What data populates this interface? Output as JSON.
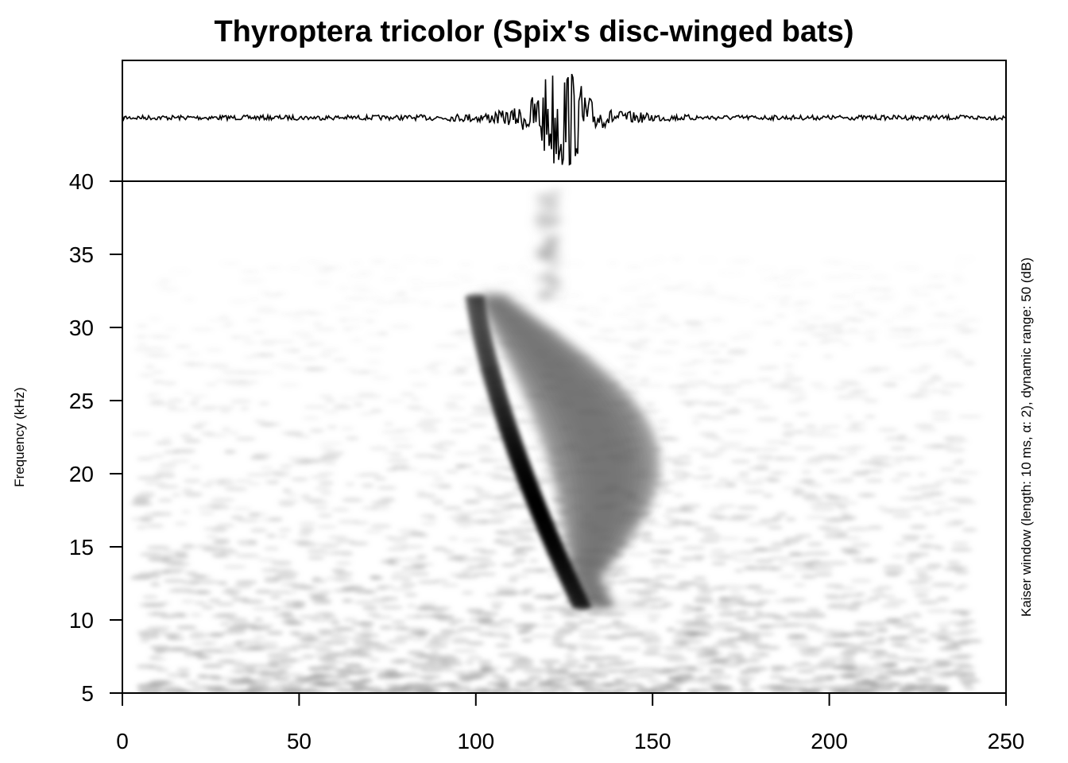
{
  "chart_data": {
    "type": "spectrogram",
    "title": "Thyroptera tricolor (Spix's disc-winged bats)",
    "ylabel": "Frequency (kHz)",
    "xlabel": "",
    "side_note": "Kaiser window (length: 10 ms, α: 2), dynamic range: 50 (dB)",
    "x_ticks": [
      "0",
      "50",
      "100",
      "150",
      "200",
      "250"
    ],
    "y_ticks": [
      "5",
      "10",
      "15",
      "20",
      "25",
      "30",
      "35",
      "40"
    ],
    "xlim": [
      0,
      250
    ],
    "ylim": [
      5,
      40
    ],
    "waveform_peak_x": 124,
    "call": {
      "type": "downward frequency-modulated sweep",
      "start": {
        "x": 98,
        "y": 32
      },
      "end": {
        "x": 128,
        "y": 11
      },
      "peak_energy": {
        "x": 117,
        "y": 17.5
      },
      "harmonic_band_x": [
        118,
        128
      ],
      "harmonic_band_y": [
        32,
        40
      ]
    },
    "colors": {
      "signal": "#000000",
      "background": "#ffffff",
      "noise": "#9a9a9a"
    }
  }
}
